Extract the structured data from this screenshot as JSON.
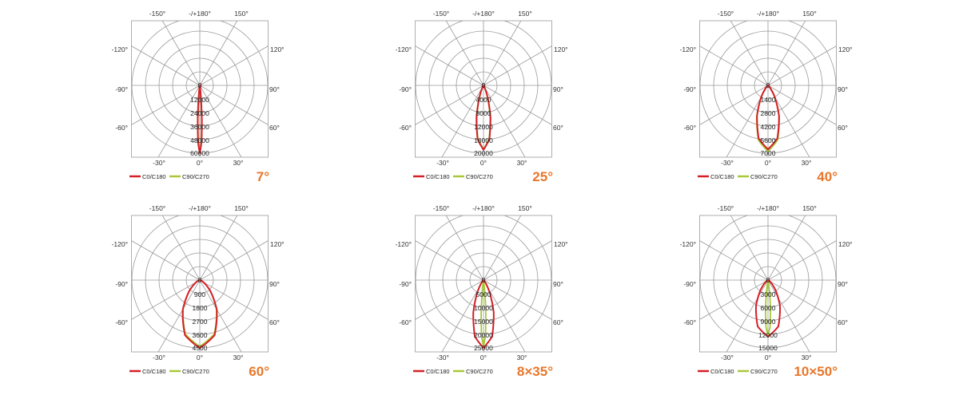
{
  "colors": {
    "c0": "#d42027",
    "c90": "#a8c83a",
    "title": "#e8772a",
    "grid": "#9a9a9a"
  },
  "angle_labels": {
    "top_left": "-150°",
    "top": "-/+180°",
    "top_right": "150°",
    "left_upper": "-120°",
    "right_upper": "120°",
    "left_mid": "-90°",
    "right_mid": "90°",
    "left_lower": "-60°",
    "right_lower": "60°",
    "bottom_left": "-30°",
    "bottom": "0°",
    "bottom_right": "30°"
  },
  "legend": {
    "c0": "C0/C180",
    "c90": "C90/C270"
  },
  "chart_data": [
    {
      "type": "polar",
      "title": "7°",
      "rmax": 60000,
      "ring_labels": [
        "0",
        "12000",
        "24000",
        "36000",
        "48000",
        "60000"
      ],
      "series": [
        {
          "name": "C0/C180",
          "angles": [
            0,
            1.75,
            3.5,
            5.25,
            7,
            8.75,
            10.5
          ],
          "values": [
            60000,
            50500,
            30000,
            12600,
            3750,
            790,
            120
          ]
        },
        {
          "name": "C90/C270",
          "angles": [
            0,
            1.6,
            3.25,
            4.9,
            6.5,
            8.1,
            9.75
          ],
          "values": [
            59000,
            49600,
            29500,
            12400,
            3690,
            770,
            118
          ]
        }
      ]
    },
    {
      "type": "polar",
      "title": "25°",
      "rmax": 20000,
      "ring_labels": [
        "0",
        "4000",
        "8000",
        "12000",
        "16000",
        "20000"
      ],
      "series": [
        {
          "name": "C0/C180",
          "angles": [
            0,
            6.25,
            12.5,
            18.75,
            25,
            31.25,
            37.5
          ],
          "values": [
            19000,
            15980,
            9500,
            3990,
            1190,
            250,
            38
          ]
        },
        {
          "name": "C90/C270",
          "angles": [
            0,
            6,
            12,
            18,
            24,
            30,
            36
          ],
          "values": [
            18800,
            15810,
            9400,
            3950,
            1175,
            246,
            38
          ]
        }
      ]
    },
    {
      "type": "polar",
      "title": "40°",
      "rmax": 7000,
      "ring_labels": [
        "0",
        "1400",
        "2800",
        "4200",
        "5600",
        "7000"
      ],
      "series": [
        {
          "name": "C0/C180",
          "angles": [
            0,
            10,
            20,
            30,
            40,
            50,
            60
          ],
          "values": [
            6600,
            5550,
            3300,
            1390,
            410,
            86,
            13
          ]
        },
        {
          "name": "C90/C270",
          "angles": [
            0,
            10,
            20,
            30,
            40,
            50,
            60
          ],
          "values": [
            6800,
            5720,
            3400,
            1430,
            425,
            89,
            14
          ]
        }
      ]
    },
    {
      "type": "polar",
      "title": "60°",
      "rmax": 4500,
      "ring_labels": [
        "0",
        "900",
        "1800",
        "2700",
        "3600",
        "4500"
      ],
      "series": [
        {
          "name": "C0/C180",
          "angles": [
            0,
            15,
            30,
            45,
            60,
            75,
            90
          ],
          "values": [
            4500,
            3785,
            2250,
            945,
            280,
            59,
            9
          ]
        },
        {
          "name": "C90/C270",
          "angles": [
            0,
            15,
            30,
            45,
            60,
            75,
            90
          ],
          "values": [
            4400,
            3700,
            2200,
            924,
            275,
            58,
            9
          ]
        }
      ]
    },
    {
      "type": "polar",
      "title": "8×35°",
      "rmax": 25000,
      "ring_labels": [
        "0",
        "5000",
        "10000",
        "15000",
        "20000",
        "25000"
      ],
      "series": [
        {
          "name": "C0/C180",
          "angles": [
            0,
            8.75,
            17.5,
            26.25,
            35,
            43.75,
            52.5
          ],
          "values": [
            25000,
            21025,
            12500,
            5250,
            1560,
            330,
            50
          ]
        },
        {
          "name": "C90/C270",
          "angles": [
            0,
            2,
            4,
            6,
            8,
            10,
            12
          ],
          "values": [
            24500,
            20600,
            12250,
            5145,
            1530,
            320,
            49
          ]
        }
      ]
    },
    {
      "type": "polar",
      "title": "10×50°",
      "rmax": 15000,
      "ring_labels": [
        "0",
        "3000",
        "6000",
        "9000",
        "12000",
        "15000"
      ],
      "series": [
        {
          "name": "C0/C180",
          "angles": [
            0,
            12.5,
            25,
            37.5,
            50,
            62.5,
            75
          ],
          "values": [
            12500,
            10510,
            6250,
            2625,
            780,
            165,
            25
          ]
        },
        {
          "name": "C90/C270",
          "angles": [
            0,
            2.5,
            5,
            7.5,
            10,
            12.5,
            15
          ],
          "values": [
            12300,
            10345,
            6150,
            2580,
            770,
            160,
            25
          ]
        }
      ]
    }
  ]
}
